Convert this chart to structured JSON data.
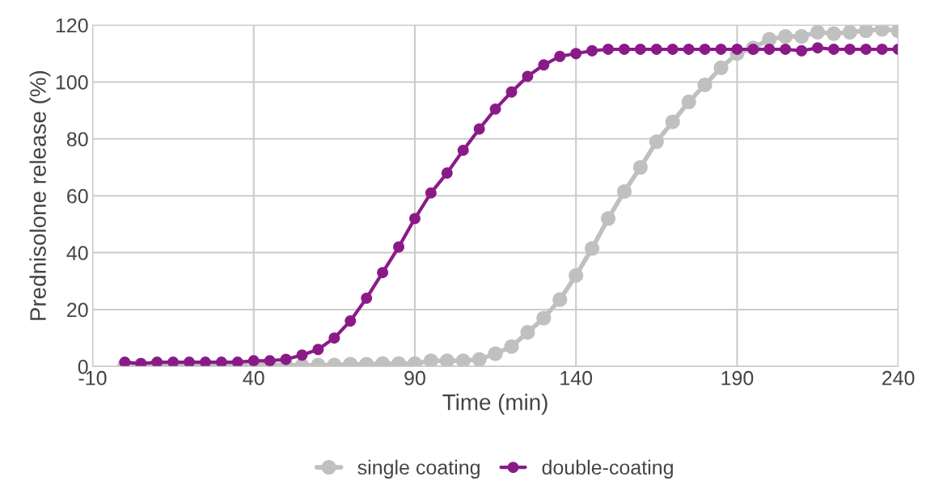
{
  "chart_data": {
    "type": "line",
    "xlabel": "Time (min)",
    "ylabel": "Prednisolone release (%)",
    "x": [
      0,
      5,
      10,
      15,
      20,
      25,
      30,
      35,
      40,
      45,
      50,
      55,
      60,
      65,
      70,
      75,
      80,
      85,
      90,
      95,
      100,
      105,
      110,
      115,
      120,
      125,
      130,
      135,
      140,
      145,
      150,
      155,
      160,
      165,
      170,
      175,
      180,
      185,
      190,
      195,
      200,
      205,
      210,
      215,
      220,
      225,
      230,
      235,
      240
    ],
    "series": [
      {
        "name": "single coating",
        "color": "#c0c0c0",
        "values": [
          0.5,
          0.5,
          0.5,
          0.5,
          0.5,
          0.5,
          0.5,
          0.5,
          0.5,
          0.5,
          0.5,
          0.3,
          0.5,
          0.5,
          0.8,
          0.8,
          1,
          1,
          1,
          2,
          2,
          2,
          2.5,
          4.5,
          7,
          12,
          17,
          23.5,
          32,
          41.5,
          52,
          61.5,
          70,
          79,
          86,
          93,
          99,
          105,
          110,
          112,
          115,
          116,
          116,
          117.5,
          117,
          117.5,
          118,
          118.5,
          118
        ]
      },
      {
        "name": "double-coating",
        "color": "#8b1a89",
        "values": [
          1.5,
          1,
          1.5,
          1.5,
          1.5,
          1.5,
          1.5,
          1.5,
          2,
          2,
          2.5,
          4,
          6,
          10,
          16,
          24,
          33,
          42,
          52,
          61,
          68,
          76,
          83.5,
          90.5,
          96.5,
          102,
          106,
          109,
          110,
          111,
          111.5,
          111.5,
          111.5,
          111.5,
          111.5,
          111.5,
          111.5,
          111.5,
          111.5,
          111.5,
          111.5,
          111.5,
          111,
          112,
          111.5,
          111.5,
          111.5,
          111.5,
          111.5
        ]
      }
    ],
    "xlim": [
      -10,
      240
    ],
    "xticks": [
      -10,
      40,
      90,
      140,
      190,
      240
    ],
    "ylim": [
      0,
      120
    ],
    "yticks": [
      0,
      20,
      40,
      60,
      80,
      100,
      120
    ],
    "grid": true,
    "legend": "bottom",
    "marker": "circle",
    "line_style": "solid"
  }
}
